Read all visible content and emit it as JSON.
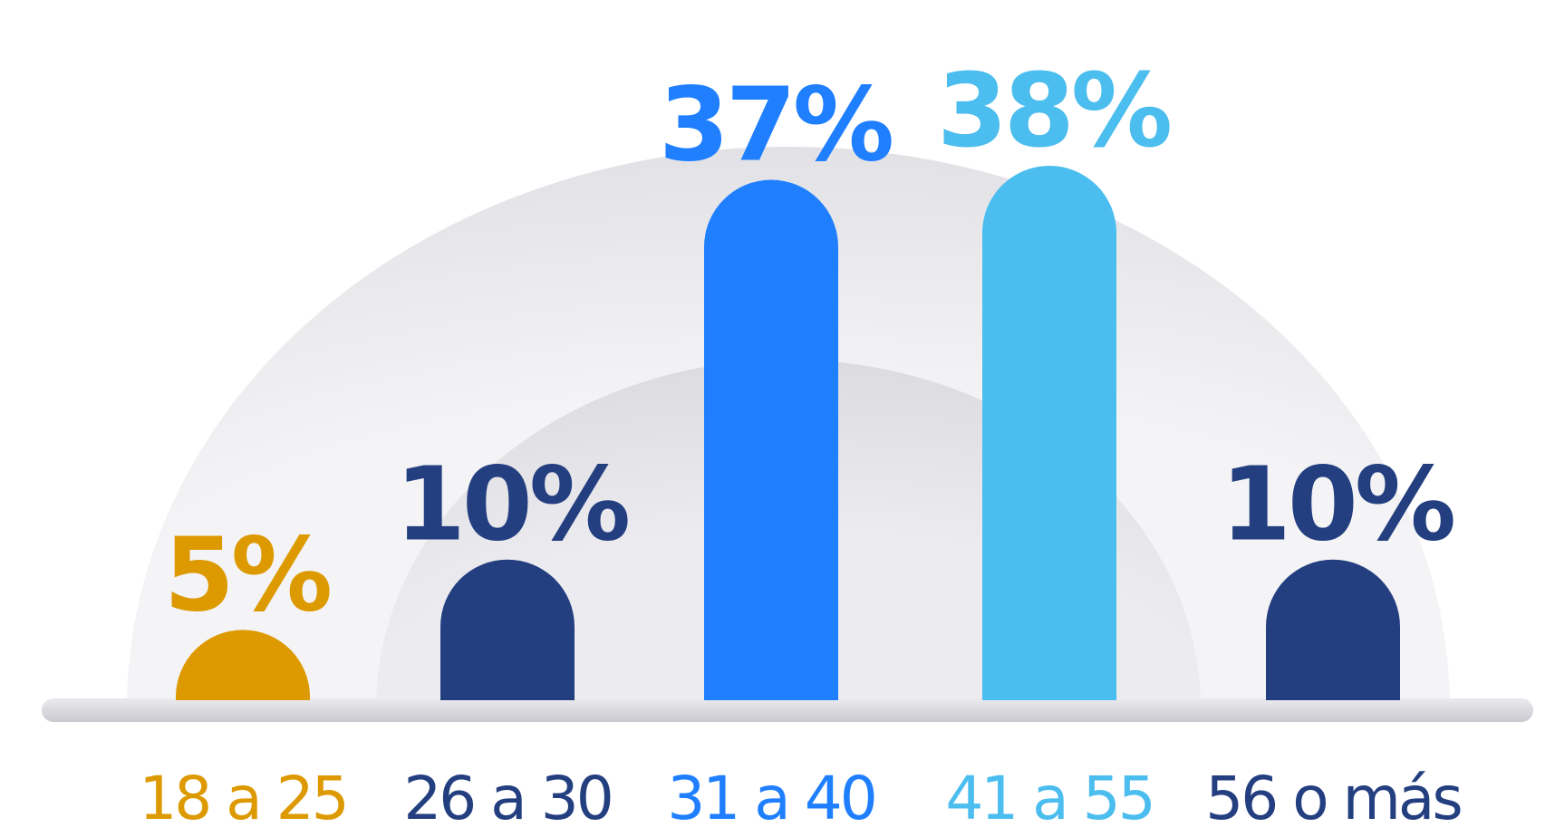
{
  "chart_data": {
    "type": "bar",
    "categories": [
      "18 a 25",
      "26 a 30",
      "31 a 40",
      "41 a 55",
      "56 o más"
    ],
    "values": [
      5,
      10,
      37,
      38,
      10
    ],
    "value_labels": [
      "5%",
      "10%",
      "37%",
      "38%",
      "10%"
    ],
    "colors": [
      "#dd9900",
      "#243f80",
      "#1f7fff",
      "#4bbdee",
      "#243f80"
    ]
  }
}
